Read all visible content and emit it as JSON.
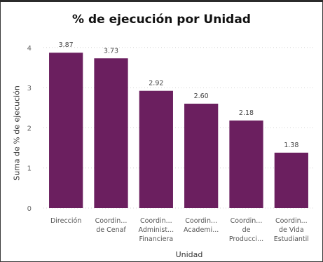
{
  "chart_data": {
    "type": "bar",
    "title": "% de ejecución por Unidad",
    "xlabel": "Unidad",
    "ylabel": "Suma de % de ejecución",
    "ylim": [
      0,
      4.45
    ],
    "yticks": [
      0,
      1,
      2,
      3,
      4
    ],
    "grid": true,
    "bar_color": "#6b1f5f",
    "categories": [
      [
        "Dirección"
      ],
      [
        "Coordin...",
        "de Cenaf"
      ],
      [
        "Coordin...",
        "Administ...",
        "Financiera"
      ],
      [
        "Coordin...",
        "Academi..."
      ],
      [
        "Coordin...",
        "de",
        "Producci..."
      ],
      [
        "Coordin...",
        "de Vida",
        "Estudiantil"
      ]
    ],
    "values": [
      3.87,
      3.73,
      2.92,
      2.6,
      2.18,
      1.38
    ],
    "value_labels": [
      "3.87",
      "3.73",
      "2.92",
      "2.60",
      "2.18",
      "1.38"
    ]
  }
}
